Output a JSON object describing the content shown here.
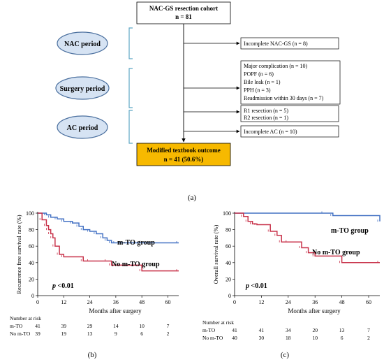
{
  "flowchart": {
    "cohort_line1": "NAC-GS resection cohort",
    "cohort_line2": "n = 81",
    "periods": [
      "NAC period",
      "Surgery period",
      "AC period"
    ],
    "excl_nac": [
      "Incomplete  NAC-GS (n = 8)"
    ],
    "excl_surgery": [
      "Major complication  (n = 10)",
      "POPF (n = 6)",
      "Bile leak (n = 1)",
      "PPH (n = 3)",
      "Readmission  within 30 days  (n = 7)"
    ],
    "excl_r": [
      "R1 resection  (n = 5)",
      "R2 resection  (n = 1)"
    ],
    "excl_ac": [
      "Incomplete AC  (n = 10)"
    ],
    "outcome_line1": "Modified textbook outcome",
    "outcome_line2": "n = 41 (50.6%)",
    "colors": {
      "outcome_fill": "#f7b900",
      "ellipse_fill": "#d6e3f3",
      "ellipse_stroke": "#4a6f9e",
      "bracket": "#5ea7c4"
    }
  },
  "labels": {
    "a": "(a)",
    "b": "(b)",
    "c": "(c)"
  },
  "colors": {
    "mto": "#4472c4",
    "no_mto": "#c8324a"
  },
  "chart_data": [
    {
      "type": "line",
      "ylabel": "Recurrence free survival rate (%)",
      "xlabel": "Months after surgery",
      "xticks": [
        0,
        12,
        24,
        36,
        48,
        60
      ],
      "yticks": [
        0,
        20,
        40,
        60,
        80,
        100
      ],
      "xlim": [
        0,
        65
      ],
      "ylim": [
        0,
        100
      ],
      "annotation": "p <0.01",
      "series": [
        {
          "name": "m-TO group",
          "x": [
            0,
            4,
            6,
            9,
            12,
            16,
            19,
            21,
            24,
            27,
            30,
            32,
            34,
            36,
            65
          ],
          "y": [
            100,
            98,
            95,
            93,
            90,
            88,
            84,
            80,
            78,
            75,
            70,
            67,
            64,
            64,
            64
          ]
        },
        {
          "name": "No m-TO group",
          "x": [
            0,
            2,
            4,
            5,
            6,
            7,
            8,
            10,
            12,
            21,
            24,
            32,
            34,
            48,
            65
          ],
          "y": [
            100,
            92,
            85,
            80,
            75,
            70,
            60,
            50,
            47,
            42,
            42,
            42,
            37,
            30,
            30
          ]
        }
      ],
      "risk_table": {
        "title": "Number at risk",
        "rows": [
          {
            "label": "m-TO",
            "values": [
              "41",
              "39",
              "29",
              "14",
              "10",
              "7"
            ]
          },
          {
            "label": "No m-TO",
            "values": [
              "39",
              "19",
              "13",
              "9",
              "6",
              "2"
            ]
          }
        ]
      }
    },
    {
      "type": "line",
      "ylabel": "Overall survival rate (%)",
      "xlabel": "Months after surgery",
      "xticks": [
        0,
        12,
        24,
        36,
        48,
        60
      ],
      "yticks": [
        0,
        20,
        40,
        60,
        80,
        100
      ],
      "xlim": [
        0,
        65
      ],
      "ylim": [
        0,
        100
      ],
      "annotation": "p <0.01",
      "series": [
        {
          "name": "m-TO group",
          "x": [
            0,
            40,
            44,
            65
          ],
          "y": [
            100,
            100,
            97,
            90
          ]
        },
        {
          "name": "No m-TO group",
          "x": [
            0,
            4,
            6,
            8,
            10,
            16,
            19,
            21,
            24,
            30,
            33,
            36,
            48,
            65
          ],
          "y": [
            100,
            96,
            90,
            87,
            86,
            78,
            73,
            65,
            65,
            58,
            52,
            48,
            40,
            40
          ]
        }
      ],
      "risk_table": {
        "title": "Number at risk",
        "rows": [
          {
            "label": "m-TO",
            "values": [
              "41",
              "41",
              "34",
              "20",
              "13",
              "7"
            ]
          },
          {
            "label": "No m-TO",
            "values": [
              "40",
              "30",
              "18",
              "10",
              "6",
              "2"
            ]
          }
        ]
      }
    }
  ]
}
